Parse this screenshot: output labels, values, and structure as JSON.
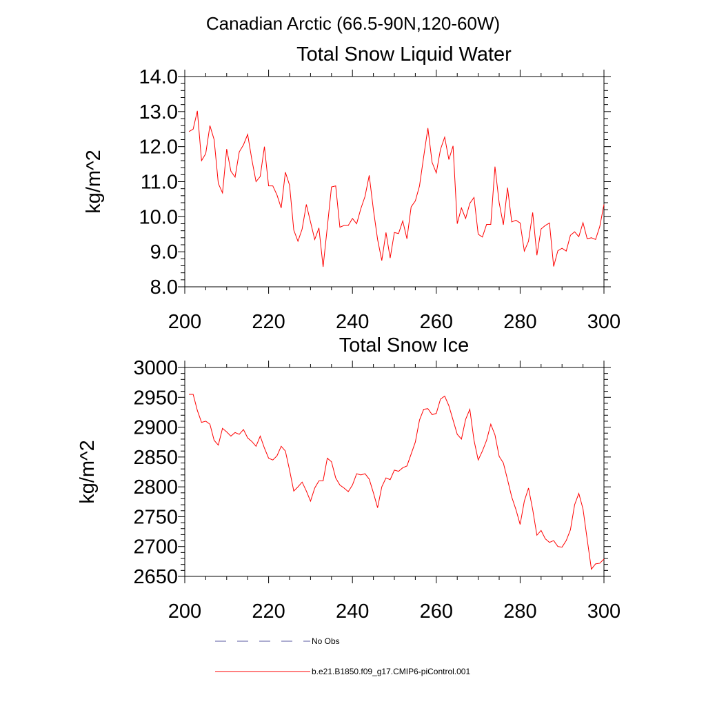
{
  "page_title": "Canadian Arctic (66.5-90N,120-60W)",
  "colors": {
    "series": "#ff0000",
    "obs": "#5a5aa0",
    "axis": "#000000"
  },
  "legend": [
    {
      "label": "No Obs",
      "style": "dashed",
      "color": "#5a5aa0"
    },
    {
      "label": "b.e21.B1850.f09_g17.CMIP6-piControl.001",
      "style": "solid",
      "color": "#ff0000"
    }
  ],
  "chart_data": [
    {
      "type": "line",
      "title": "Total Snow Liquid Water",
      "xlabel": "",
      "ylabel": "kg/m^2",
      "xlim": [
        200,
        300
      ],
      "ylim": [
        8.0,
        14.0
      ],
      "x_ticks": [
        200,
        220,
        240,
        260,
        280,
        300
      ],
      "x_tick_labels": [
        "200",
        "220",
        "240",
        "260",
        "280",
        "300"
      ],
      "y_ticks": [
        8.0,
        9.0,
        10.0,
        11.0,
        12.0,
        13.0,
        14.0
      ],
      "y_tick_labels": [
        "8.0",
        "9.0",
        "10.0",
        "11.0",
        "12.0",
        "13.0",
        "14.0"
      ],
      "grid": false,
      "x_start": 201,
      "series": [
        {
          "name": "b.e21.B1850.f09_g17.CMIP6-piControl.001",
          "color": "#ff0000",
          "values": [
            12.43,
            12.5,
            13.02,
            11.6,
            11.8,
            12.6,
            12.2,
            10.95,
            10.68,
            11.93,
            11.3,
            11.13,
            11.85,
            12.05,
            12.35,
            11.63,
            11.0,
            11.15,
            12.0,
            10.88,
            10.88,
            10.62,
            10.25,
            11.27,
            10.9,
            9.62,
            9.3,
            9.65,
            10.35,
            9.85,
            9.35,
            9.68,
            8.57,
            9.7,
            10.85,
            10.88,
            9.7,
            9.75,
            9.75,
            9.95,
            9.8,
            10.23,
            10.58,
            11.18,
            10.2,
            9.35,
            8.75,
            9.55,
            8.82,
            9.55,
            9.52,
            9.88,
            9.37,
            10.28,
            10.45,
            10.88,
            11.72,
            12.53,
            11.55,
            11.25,
            11.92,
            12.27,
            11.63,
            12.02,
            9.8,
            10.25,
            9.95,
            10.38,
            10.55,
            9.5,
            9.42,
            9.78,
            9.78,
            11.43,
            10.4,
            9.77,
            10.83,
            9.85,
            9.9,
            9.82,
            9.02,
            9.3,
            10.12,
            8.9,
            9.65,
            9.75,
            9.82,
            8.58,
            9.03,
            9.1,
            9.02,
            9.47,
            9.57,
            9.43,
            9.83,
            9.37,
            9.4,
            9.35,
            9.72,
            10.35
          ]
        }
      ]
    },
    {
      "type": "line",
      "title": "Total Snow Ice",
      "xlabel": "",
      "ylabel": "kg/m^2",
      "xlim": [
        200,
        300
      ],
      "ylim": [
        2650,
        3000
      ],
      "x_ticks": [
        200,
        220,
        240,
        260,
        280,
        300
      ],
      "x_tick_labels": [
        "200",
        "220",
        "240",
        "260",
        "280",
        "300"
      ],
      "y_ticks": [
        2650,
        2700,
        2750,
        2800,
        2850,
        2900,
        2950,
        3000
      ],
      "y_tick_labels": [
        "2650",
        "2700",
        "2750",
        "2800",
        "2850",
        "2900",
        "2950",
        "3000"
      ],
      "grid": false,
      "x_start": 201,
      "series": [
        {
          "name": "b.e21.B1850.f09_g17.CMIP6-piControl.001",
          "color": "#ff0000",
          "values": [
            2955,
            2955,
            2928,
            2908,
            2910,
            2905,
            2878,
            2870,
            2898,
            2892,
            2885,
            2891,
            2888,
            2896,
            2882,
            2876,
            2868,
            2885,
            2865,
            2848,
            2845,
            2852,
            2868,
            2860,
            2828,
            2793,
            2800,
            2808,
            2793,
            2776,
            2798,
            2810,
            2810,
            2848,
            2842,
            2815,
            2803,
            2798,
            2792,
            2803,
            2822,
            2820,
            2822,
            2813,
            2790,
            2765,
            2800,
            2815,
            2812,
            2828,
            2826,
            2832,
            2835,
            2855,
            2875,
            2912,
            2930,
            2931,
            2921,
            2923,
            2947,
            2952,
            2936,
            2912,
            2888,
            2880,
            2913,
            2930,
            2878,
            2845,
            2860,
            2878,
            2905,
            2887,
            2851,
            2840,
            2812,
            2783,
            2762,
            2737,
            2776,
            2798,
            2762,
            2719,
            2727,
            2713,
            2707,
            2710,
            2700,
            2699,
            2710,
            2728,
            2770,
            2789,
            2763,
            2712,
            2662,
            2671,
            2672,
            2679
          ]
        }
      ]
    }
  ]
}
